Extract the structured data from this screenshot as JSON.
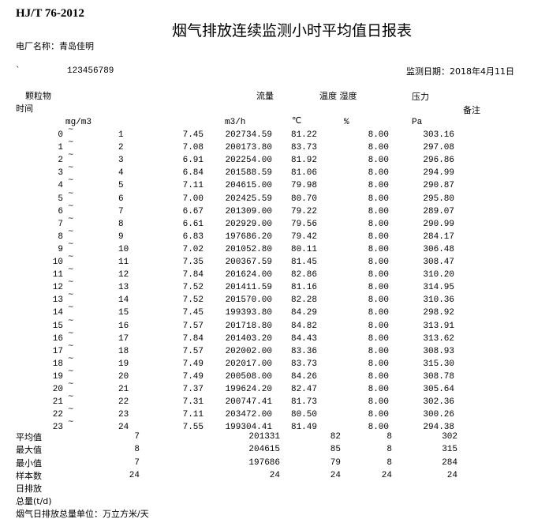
{
  "header": {
    "standard": "HJ/T 76-2012",
    "title": "烟气排放连续监测小时平均值日报表",
    "plant_label": "电厂名称：青岛佳明",
    "mark": "`",
    "code": "123456789",
    "date_label": "监测日期：2018年4月11日"
  },
  "columns": {
    "pm": "颗粒物",
    "flow": "流量",
    "temp_hum": "温度 湿度",
    "pressure": "压力",
    "time": "时间",
    "remark": "备注",
    "pm_unit": "mg/m3",
    "flow_unit": "m3/h",
    "temp_unit": "℃",
    "hum_unit": "%",
    "pressure_unit": "Pa"
  },
  "tilde": "~",
  "rows": [
    [
      "0",
      "1",
      "7.45",
      "202734.59",
      "81.22",
      "8.00",
      "303.16"
    ],
    [
      "1",
      "2",
      "7.08",
      "200173.80",
      "83.73",
      "8.00",
      "297.08"
    ],
    [
      "2",
      "3",
      "6.91",
      "202254.00",
      "81.92",
      "8.00",
      "296.86"
    ],
    [
      "3",
      "4",
      "6.84",
      "201588.59",
      "81.06",
      "8.00",
      "294.99"
    ],
    [
      "4",
      "5",
      "7.11",
      "204615.00",
      "79.98",
      "8.00",
      "290.87"
    ],
    [
      "5",
      "6",
      "7.00",
      "202425.59",
      "80.70",
      "8.00",
      "295.80"
    ],
    [
      "6",
      "7",
      "6.67",
      "201309.00",
      "79.22",
      "8.00",
      "289.07"
    ],
    [
      "7",
      "8",
      "6.61",
      "202929.00",
      "79.56",
      "8.00",
      "290.99"
    ],
    [
      "8",
      "9",
      "6.83",
      "197686.20",
      "79.42",
      "8.00",
      "284.17"
    ],
    [
      "9",
      "10",
      "7.02",
      "201052.80",
      "80.11",
      "8.00",
      "306.48"
    ],
    [
      "10",
      "11",
      "7.35",
      "200367.59",
      "81.45",
      "8.00",
      "308.47"
    ],
    [
      "11",
      "12",
      "7.84",
      "201624.00",
      "82.86",
      "8.00",
      "310.20"
    ],
    [
      "12",
      "13",
      "7.52",
      "201411.59",
      "81.16",
      "8.00",
      "314.95"
    ],
    [
      "13",
      "14",
      "7.52",
      "201570.00",
      "82.28",
      "8.00",
      "310.36"
    ],
    [
      "14",
      "15",
      "7.45",
      "199393.80",
      "84.29",
      "8.00",
      "298.92"
    ],
    [
      "15",
      "16",
      "7.57",
      "201718.80",
      "84.82",
      "8.00",
      "313.91"
    ],
    [
      "16",
      "17",
      "7.84",
      "201403.20",
      "84.43",
      "8.00",
      "313.62"
    ],
    [
      "17",
      "18",
      "7.57",
      "202002.00",
      "83.36",
      "8.00",
      "308.93"
    ],
    [
      "18",
      "19",
      "7.49",
      "202017.00",
      "83.73",
      "8.00",
      "315.30"
    ],
    [
      "19",
      "20",
      "7.49",
      "200508.00",
      "84.26",
      "8.00",
      "308.78"
    ],
    [
      "20",
      "21",
      "7.37",
      "199624.20",
      "82.47",
      "8.00",
      "305.64"
    ],
    [
      "21",
      "22",
      "7.31",
      "200747.41",
      "81.73",
      "8.00",
      "302.36"
    ],
    [
      "22",
      "23",
      "7.11",
      "203472.00",
      "80.50",
      "8.00",
      "300.26"
    ],
    [
      "23",
      "24",
      "7.55",
      "199304.41",
      "81.49",
      "8.00",
      "294.38"
    ]
  ],
  "summary": [
    [
      "平均值",
      "7",
      "201331",
      "82",
      "8",
      "302"
    ],
    [
      "最大值",
      "8",
      "204615",
      "85",
      "8",
      "315"
    ],
    [
      "最小值",
      "7",
      "197686",
      "79",
      "8",
      "284"
    ],
    [
      "样本数",
      "24",
      "24",
      "24",
      "24",
      "24"
    ]
  ],
  "footer": {
    "daily_label": "日排放",
    "total_label": "总量(t/d)",
    "unit_note": "烟气日排放总量单位：万立方米/天"
  }
}
